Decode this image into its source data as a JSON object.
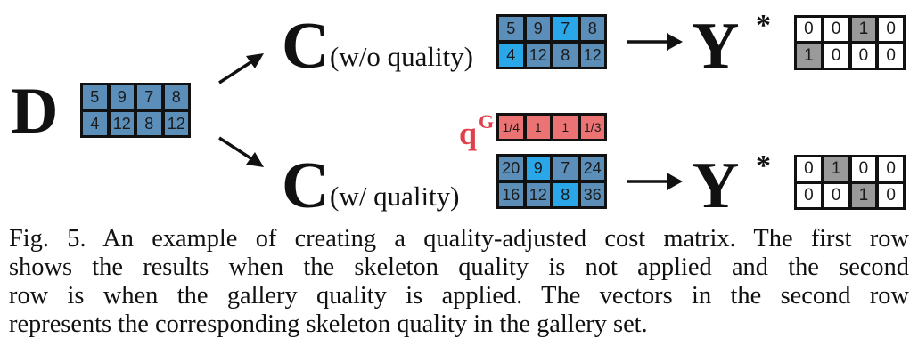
{
  "labels": {
    "d": "D",
    "c_top": "C",
    "c_top_sub": "(w/o quality)",
    "c_bottom": "C",
    "c_bottom_sub": "(w/ quality)",
    "y_top": "Y",
    "y_top_star": "*",
    "y_bottom": "Y",
    "y_bottom_star": "*",
    "q": "q",
    "q_sup": "G"
  },
  "colors": {
    "steel": "#5b8fb9",
    "bright": "#2aa7e8",
    "salmon": "#ec7373",
    "gray": "#9a9a9a",
    "white": "#ffffff",
    "accent_text": "#e0404a"
  },
  "matrices": {
    "d": {
      "rows": [
        [
          "5",
          "9",
          "7",
          "8"
        ],
        [
          "4",
          "12",
          "8",
          "12"
        ]
      ],
      "fills": [
        [
          "steel",
          "steel",
          "steel",
          "steel"
        ],
        [
          "steel",
          "steel",
          "steel",
          "steel"
        ]
      ]
    },
    "c_top": {
      "rows": [
        [
          "5",
          "9",
          "7",
          "8"
        ],
        [
          "4",
          "12",
          "8",
          "12"
        ]
      ],
      "fills": [
        [
          "steel",
          "steel",
          "bright",
          "steel"
        ],
        [
          "bright",
          "steel",
          "steel",
          "steel"
        ]
      ]
    },
    "y_top": {
      "rows": [
        [
          "0",
          "0",
          "1",
          "0"
        ],
        [
          "1",
          "0",
          "0",
          "0"
        ]
      ],
      "fills": [
        [
          "white",
          "white",
          "gray",
          "white"
        ],
        [
          "gray",
          "white",
          "white",
          "white"
        ]
      ]
    },
    "q_vector": {
      "rows": [
        [
          "1/4",
          "1",
          "1",
          "1/3"
        ]
      ],
      "fills": [
        [
          "salmon",
          "salmon",
          "salmon",
          "salmon"
        ]
      ]
    },
    "c_bottom": {
      "rows": [
        [
          "20",
          "9",
          "7",
          "24"
        ],
        [
          "16",
          "12",
          "8",
          "36"
        ]
      ],
      "fills": [
        [
          "steel",
          "bright",
          "steel",
          "steel"
        ],
        [
          "steel",
          "steel",
          "bright",
          "steel"
        ]
      ]
    },
    "y_bottom": {
      "rows": [
        [
          "0",
          "1",
          "0",
          "0"
        ],
        [
          "0",
          "0",
          "1",
          "0"
        ]
      ],
      "fills": [
        [
          "white",
          "gray",
          "white",
          "white"
        ],
        [
          "white",
          "white",
          "gray",
          "white"
        ]
      ]
    }
  },
  "caption": {
    "lines": [
      "Fig. 5.  An example of creating a quality-adjusted cost matrix. The first row",
      "shows the results when the skeleton quality is not applied and the second",
      "row is when the gallery quality is applied. The vectors in the second row",
      "represents the corresponding skeleton quality in the gallery set."
    ]
  }
}
